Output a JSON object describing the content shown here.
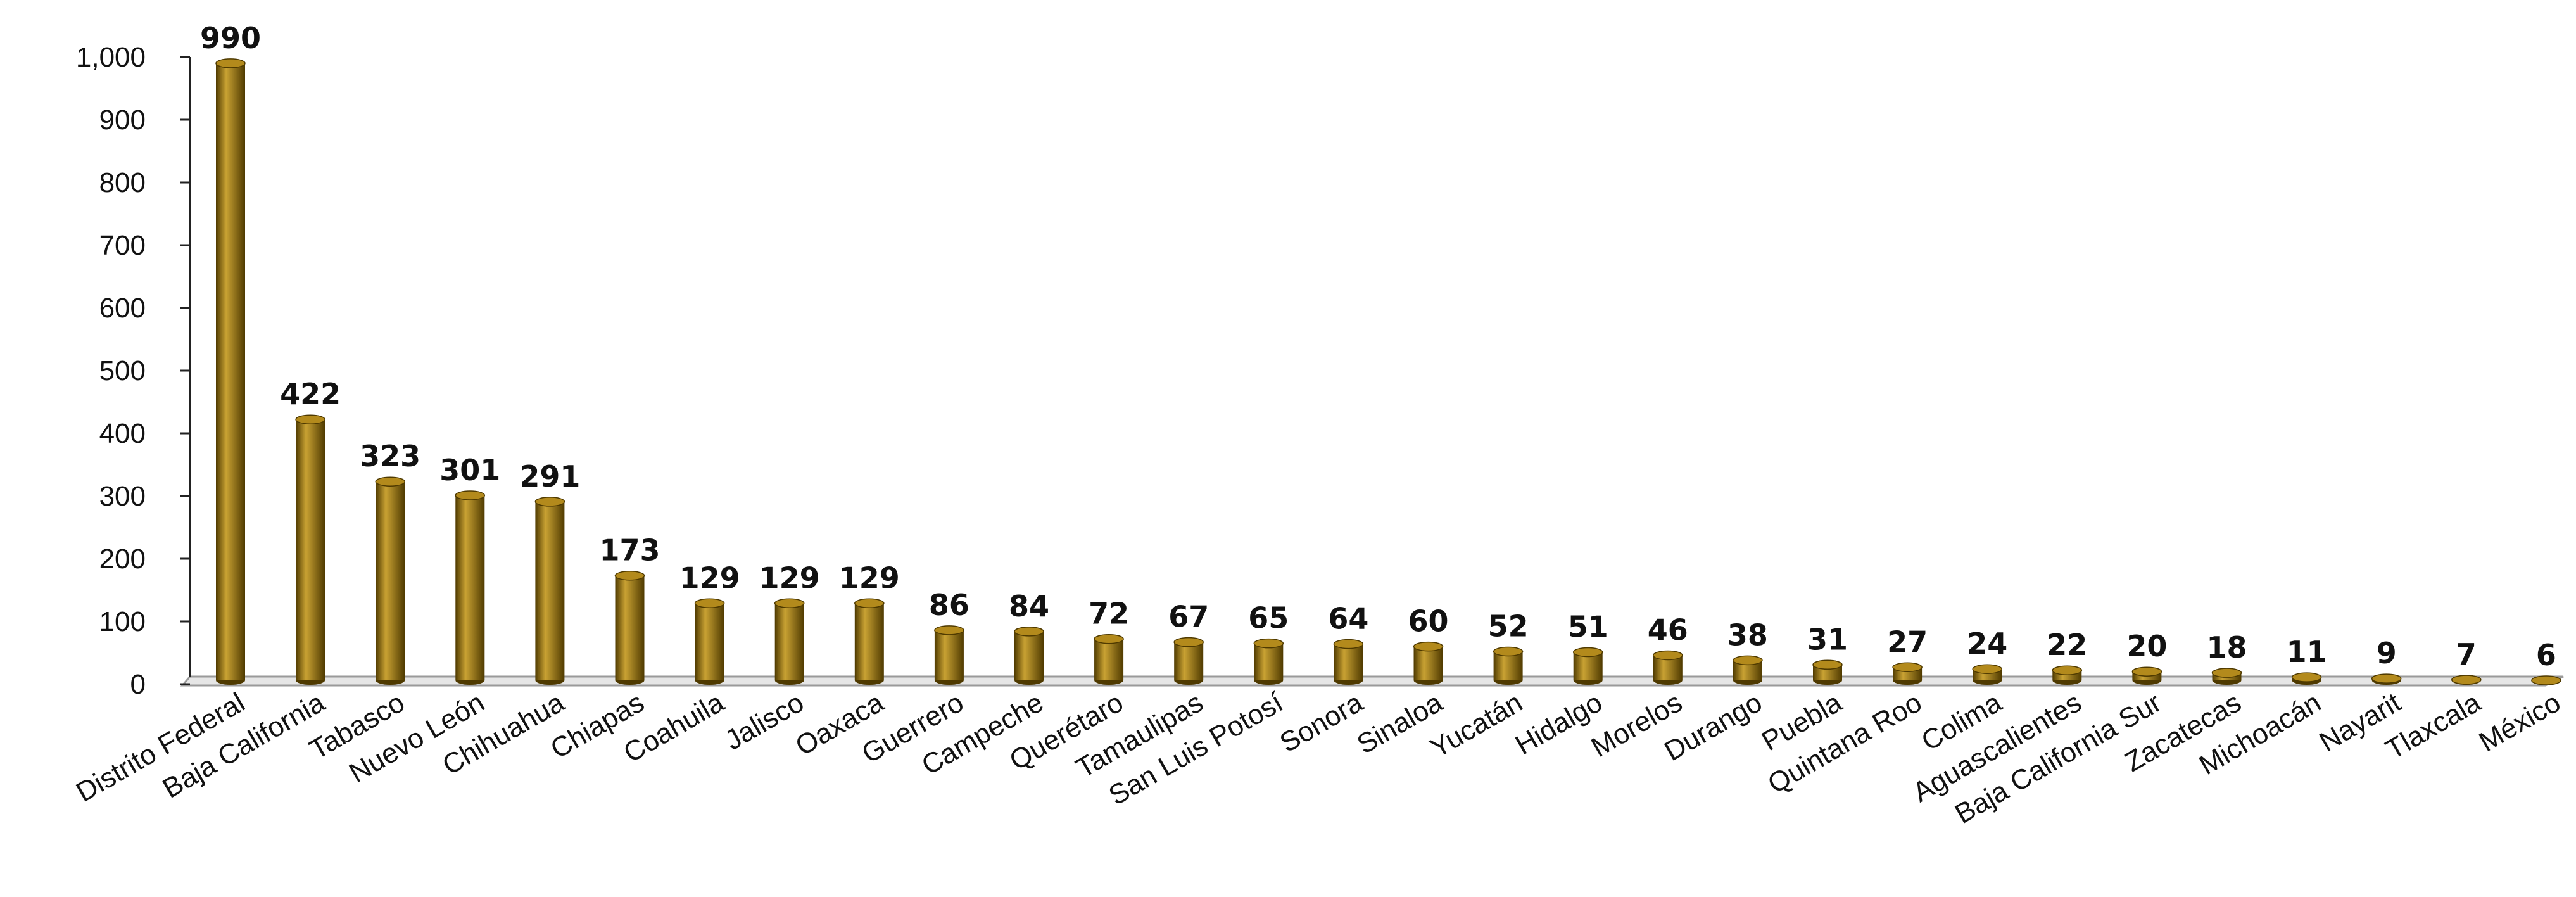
{
  "chart_data": {
    "type": "bar",
    "title": "",
    "xlabel": "",
    "ylabel": "",
    "ylim": [
      0,
      1000
    ],
    "yticks": [
      0,
      100,
      200,
      300,
      400,
      500,
      600,
      700,
      800,
      900,
      1000
    ],
    "ytick_labels": [
      "0",
      "100",
      "200",
      "300",
      "400",
      "500",
      "600",
      "700",
      "800",
      "900",
      "1,000"
    ],
    "grid": false,
    "legend": "none",
    "bar_style": "3d-cylinder",
    "colors": {
      "bar_light": "#c9a233",
      "bar_mid": "#8a6a08",
      "bar_dark": "#4f3a00",
      "bar_top": "#b38a1c",
      "floor": "#9a9a9a"
    },
    "categories": [
      "Distrito Federal",
      "Baja California",
      "Tabasco",
      "Nuevo León",
      "Chihuahua",
      "Chiapas",
      "Coahuila",
      "Jalisco",
      "Oaxaca",
      "Guerrero",
      "Campeche",
      "Querétaro",
      "Tamaulipas",
      "San Luis Potosí",
      "Sonora",
      "Sinaloa",
      "Yucatán",
      "Hidalgo",
      "Morelos",
      "Durango",
      "Puebla",
      "Quintana Roo",
      "Colima",
      "Aguascalientes",
      "Baja California Sur",
      "Zacatecas",
      "Michoacán",
      "Nayarit",
      "Tlaxcala",
      "México"
    ],
    "values": [
      990,
      422,
      323,
      301,
      291,
      173,
      129,
      129,
      129,
      86,
      84,
      72,
      67,
      65,
      64,
      60,
      52,
      51,
      46,
      38,
      31,
      27,
      24,
      22,
      20,
      18,
      11,
      9,
      7,
      6
    ]
  }
}
